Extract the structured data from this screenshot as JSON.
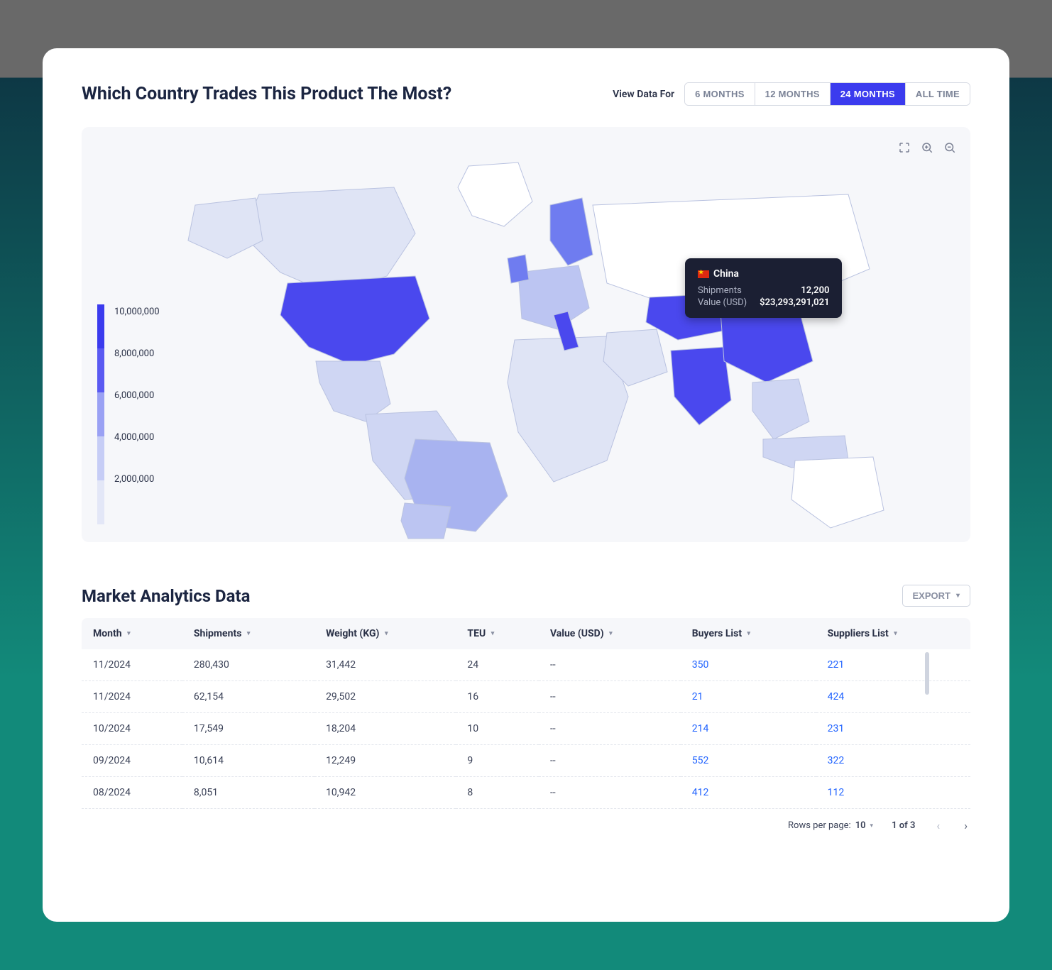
{
  "header": {
    "title": "Which Country Trades This Product The Most?",
    "range_label": "View Data For",
    "ranges": [
      "6 MONTHS",
      "12 MONTHS",
      "24 MONTHS",
      "ALL TIME"
    ],
    "active_range_index": 2
  },
  "map": {
    "background": "#f6f7fa",
    "tools": [
      "expand",
      "zoom-in",
      "zoom-out"
    ],
    "legend": {
      "ticks": [
        "10,000,000",
        "8,000,000",
        "6,000,000",
        "4,000,000",
        "2,000,000"
      ],
      "colors": [
        "#3b3bee",
        "#5a5af2",
        "#9aa1f4",
        "#c6cdf6",
        "#e3e7f7"
      ],
      "font_color": "#2a3147"
    },
    "tooltip": {
      "country": "China",
      "rows": [
        {
          "label": "Shipments",
          "value": "12,200"
        },
        {
          "label": "Value (USD)",
          "value": "$23,293,291,021"
        }
      ],
      "bg": "#1b1f33",
      "text": "#ffffff",
      "muted": "#aeb3c5"
    },
    "country_colors": {
      "default_land": "#e6e9f5",
      "usa": "#4a48ee",
      "canada": "#dfe4f5",
      "mexico": "#cfd6f3",
      "brazil": "#a8b3f0",
      "argentina": "#bcc5f2",
      "south_america_other": "#cfd6f3",
      "europe_west": "#bcc5f2",
      "uk": "#6f7cf0",
      "italy": "#4a48ee",
      "scandinavia": "#6f7cf0",
      "russia": "#ffffff",
      "kazakhstan": "#4a48ee",
      "india": "#4a48ee",
      "china": "#4a48ee",
      "se_asia": "#cfd6f3",
      "africa": "#dfe4f5",
      "australia": "#ffffff",
      "greenland": "#ffffff",
      "stroke": "#b9c2e0"
    }
  },
  "analytics": {
    "title": "Market Analytics Data",
    "export_label": "EXPORT",
    "columns": [
      "Month",
      "Shipments",
      "Weight (KG)",
      "TEU",
      "Value (USD)",
      "Buyers List",
      "Suppliers List"
    ],
    "rows": [
      {
        "month": "11/2024",
        "shipments": "280,430",
        "weight": "31,442",
        "teu": "24",
        "value": "--",
        "buyers": "350",
        "suppliers": "221"
      },
      {
        "month": "11/2024",
        "shipments": "62,154",
        "weight": "29,502",
        "teu": "16",
        "value": "--",
        "buyers": "21",
        "suppliers": "424"
      },
      {
        "month": "10/2024",
        "shipments": "17,549",
        "weight": "18,204",
        "teu": "10",
        "value": "--",
        "buyers": "214",
        "suppliers": "231"
      },
      {
        "month": "09/2024",
        "shipments": "10,614",
        "weight": "12,249",
        "teu": "9",
        "value": "--",
        "buyers": "552",
        "suppliers": "322"
      },
      {
        "month": "08/2024",
        "shipments": "8,051",
        "weight": "10,942",
        "teu": "8",
        "value": "--",
        "buyers": "412",
        "suppliers": "112"
      }
    ],
    "pager": {
      "rpp_label": "Rows per page:",
      "rpp_value": "10",
      "range_text": "1 of 3"
    },
    "link_color": "#1f62ff",
    "thead_bg": "#f6f7fa"
  }
}
